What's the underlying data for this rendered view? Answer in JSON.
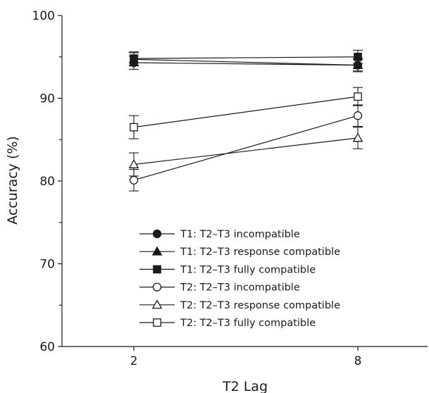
{
  "chart_data": {
    "type": "line",
    "title": "",
    "xlabel": "T2 Lag",
    "ylabel": "Accuracy (%)",
    "categories": [
      "2",
      "8"
    ],
    "ylim": [
      60,
      100
    ],
    "yticks": [
      "60",
      "70",
      "80",
      "90",
      "100"
    ],
    "grid": false,
    "legend_position": "lower-center",
    "series": [
      {
        "name": "T1: T2–T3 incompatible",
        "marker": "circle",
        "filled": true,
        "values": [
          94.3,
          94.0
        ],
        "errors": [
          0.8,
          0.7
        ]
      },
      {
        "name": "T1: T2–T3 response compatible",
        "marker": "triangle",
        "filled": true,
        "values": [
          94.7,
          94.0
        ],
        "errors": [
          0.8,
          0.8
        ]
      },
      {
        "name": "T1: T2–T3 fully compatible",
        "marker": "square",
        "filled": true,
        "values": [
          94.8,
          95.0
        ],
        "errors": [
          0.8,
          0.8
        ]
      },
      {
        "name": "T2: T2–T3 incompatible",
        "marker": "circle",
        "filled": false,
        "values": [
          80.1,
          87.9
        ],
        "errors": [
          1.3,
          1.3
        ]
      },
      {
        "name": "T2: T2–T3 response compatible",
        "marker": "triangle",
        "filled": false,
        "values": [
          82.0,
          85.2
        ],
        "errors": [
          1.4,
          1.3
        ]
      },
      {
        "name": "T2: T2–T3 fully compatible",
        "marker": "square",
        "filled": false,
        "values": [
          86.5,
          90.2
        ],
        "errors": [
          1.4,
          1.1
        ]
      }
    ]
  }
}
